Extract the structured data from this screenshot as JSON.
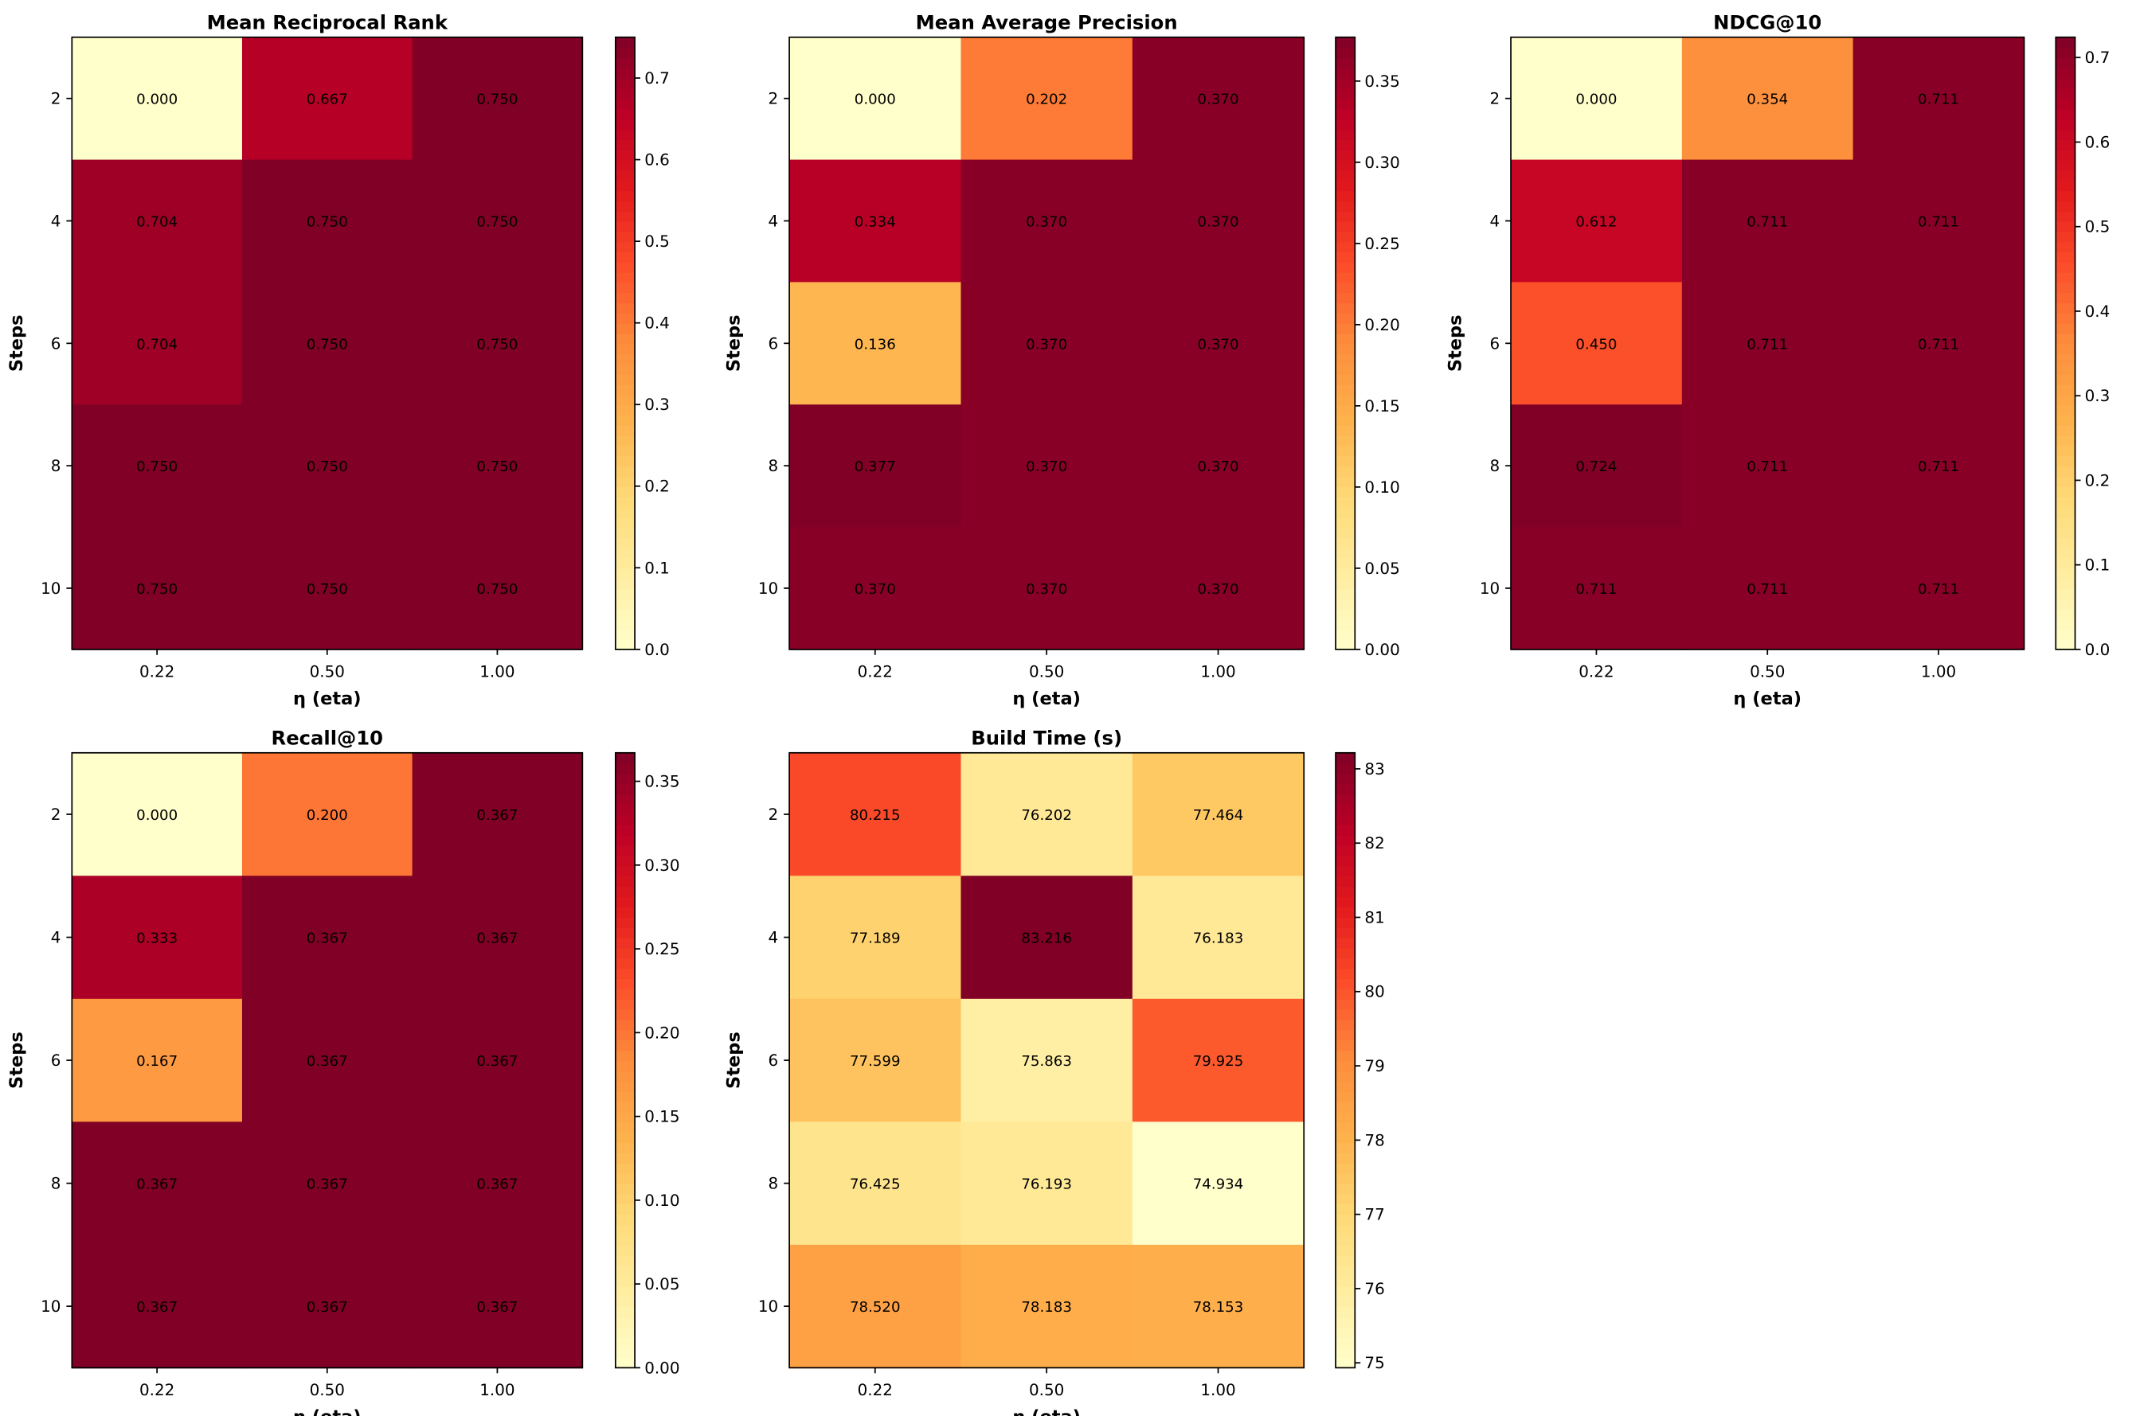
{
  "chart_data": [
    {
      "type": "heatmap",
      "title": "Mean Reciprocal Rank",
      "xlabel": "η (eta)",
      "ylabel": "Steps",
      "x_categories": [
        "0.22",
        "0.50",
        "1.00"
      ],
      "y_categories": [
        "2",
        "4",
        "6",
        "8",
        "10"
      ],
      "values": [
        [
          0.0,
          0.667,
          0.75
        ],
        [
          0.704,
          0.75,
          0.75
        ],
        [
          0.704,
          0.75,
          0.75
        ],
        [
          0.75,
          0.75,
          0.75
        ],
        [
          0.75,
          0.75,
          0.75
        ]
      ],
      "cell_labels": [
        [
          "0.000",
          "0.667",
          "0.750"
        ],
        [
          "0.704",
          "0.750",
          "0.750"
        ],
        [
          "0.704",
          "0.750",
          "0.750"
        ],
        [
          "0.750",
          "0.750",
          "0.750"
        ],
        [
          "0.750",
          "0.750",
          "0.750"
        ]
      ],
      "colormap": "YlOrRd",
      "color_range": [
        0.0,
        0.75
      ],
      "colorbar_ticks": [
        0,
        0.1,
        0.2,
        0.3,
        0.4,
        0.5,
        0.6,
        0.7
      ],
      "colorbar_tick_labels": [
        "0.0",
        "0.1",
        "0.2",
        "0.3",
        "0.4",
        "0.5",
        "0.6",
        "0.7"
      ]
    },
    {
      "type": "heatmap",
      "title": "Mean Average Precision",
      "xlabel": "η (eta)",
      "ylabel": "Steps",
      "x_categories": [
        "0.22",
        "0.50",
        "1.00"
      ],
      "y_categories": [
        "2",
        "4",
        "6",
        "8",
        "10"
      ],
      "values": [
        [
          0.0,
          0.202,
          0.37
        ],
        [
          0.334,
          0.37,
          0.37
        ],
        [
          0.136,
          0.37,
          0.37
        ],
        [
          0.377,
          0.37,
          0.37
        ],
        [
          0.37,
          0.37,
          0.37
        ]
      ],
      "cell_labels": [
        [
          "0.000",
          "0.202",
          "0.370"
        ],
        [
          "0.334",
          "0.370",
          "0.370"
        ],
        [
          "0.136",
          "0.370",
          "0.370"
        ],
        [
          "0.377",
          "0.370",
          "0.370"
        ],
        [
          "0.370",
          "0.370",
          "0.370"
        ]
      ],
      "colormap": "YlOrRd",
      "color_range": [
        0.0,
        0.377
      ],
      "colorbar_ticks": [
        0,
        0.05,
        0.1,
        0.15,
        0.2,
        0.25,
        0.3,
        0.35
      ],
      "colorbar_tick_labels": [
        "0.00",
        "0.05",
        "0.10",
        "0.15",
        "0.20",
        "0.25",
        "0.30",
        "0.35"
      ]
    },
    {
      "type": "heatmap",
      "title": "NDCG@10",
      "xlabel": "η (eta)",
      "ylabel": "Steps",
      "x_categories": [
        "0.22",
        "0.50",
        "1.00"
      ],
      "y_categories": [
        "2",
        "4",
        "6",
        "8",
        "10"
      ],
      "values": [
        [
          0.0,
          0.354,
          0.711
        ],
        [
          0.612,
          0.711,
          0.711
        ],
        [
          0.45,
          0.711,
          0.711
        ],
        [
          0.724,
          0.711,
          0.711
        ],
        [
          0.711,
          0.711,
          0.711
        ]
      ],
      "cell_labels": [
        [
          "0.000",
          "0.354",
          "0.711"
        ],
        [
          "0.612",
          "0.711",
          "0.711"
        ],
        [
          "0.450",
          "0.711",
          "0.711"
        ],
        [
          "0.724",
          "0.711",
          "0.711"
        ],
        [
          "0.711",
          "0.711",
          "0.711"
        ]
      ],
      "colormap": "YlOrRd",
      "color_range": [
        0.0,
        0.724
      ],
      "colorbar_ticks": [
        0,
        0.1,
        0.2,
        0.3,
        0.4,
        0.5,
        0.6,
        0.7
      ],
      "colorbar_tick_labels": [
        "0.0",
        "0.1",
        "0.2",
        "0.3",
        "0.4",
        "0.5",
        "0.6",
        "0.7"
      ]
    },
    {
      "type": "heatmap",
      "title": "Recall@10",
      "xlabel": "η (eta)",
      "ylabel": "Steps",
      "x_categories": [
        "0.22",
        "0.50",
        "1.00"
      ],
      "y_categories": [
        "2",
        "4",
        "6",
        "8",
        "10"
      ],
      "values": [
        [
          0.0,
          0.2,
          0.367
        ],
        [
          0.333,
          0.367,
          0.367
        ],
        [
          0.167,
          0.367,
          0.367
        ],
        [
          0.367,
          0.367,
          0.367
        ],
        [
          0.367,
          0.367,
          0.367
        ]
      ],
      "cell_labels": [
        [
          "0.000",
          "0.200",
          "0.367"
        ],
        [
          "0.333",
          "0.367",
          "0.367"
        ],
        [
          "0.167",
          "0.367",
          "0.367"
        ],
        [
          "0.367",
          "0.367",
          "0.367"
        ],
        [
          "0.367",
          "0.367",
          "0.367"
        ]
      ],
      "colormap": "YlOrRd",
      "color_range": [
        0.0,
        0.367
      ],
      "colorbar_ticks": [
        0,
        0.05,
        0.1,
        0.15,
        0.2,
        0.25,
        0.3,
        0.35
      ],
      "colorbar_tick_labels": [
        "0.00",
        "0.05",
        "0.10",
        "0.15",
        "0.20",
        "0.25",
        "0.30",
        "0.35"
      ]
    },
    {
      "type": "heatmap",
      "title": "Build Time (s)",
      "xlabel": "η (eta)",
      "ylabel": "Steps",
      "x_categories": [
        "0.22",
        "0.50",
        "1.00"
      ],
      "y_categories": [
        "2",
        "4",
        "6",
        "8",
        "10"
      ],
      "values": [
        [
          80.215,
          76.202,
          77.464
        ],
        [
          77.189,
          83.216,
          76.183
        ],
        [
          77.599,
          75.863,
          79.925
        ],
        [
          76.425,
          76.193,
          74.934
        ],
        [
          78.52,
          78.183,
          78.153
        ]
      ],
      "cell_labels": [
        [
          "80.215",
          "76.202",
          "77.464"
        ],
        [
          "77.189",
          "83.216",
          "76.183"
        ],
        [
          "77.599",
          "75.863",
          "79.925"
        ],
        [
          "76.425",
          "76.193",
          "74.934"
        ],
        [
          "78.520",
          "78.183",
          "78.153"
        ]
      ],
      "colormap": "YlOrRd",
      "color_range": [
        74.934,
        83.216
      ],
      "colorbar_ticks": [
        75,
        76,
        77,
        78,
        79,
        80,
        81,
        82,
        83
      ],
      "colorbar_tick_labels": [
        "75",
        "76",
        "77",
        "78",
        "79",
        "80",
        "81",
        "82",
        "83"
      ]
    }
  ]
}
